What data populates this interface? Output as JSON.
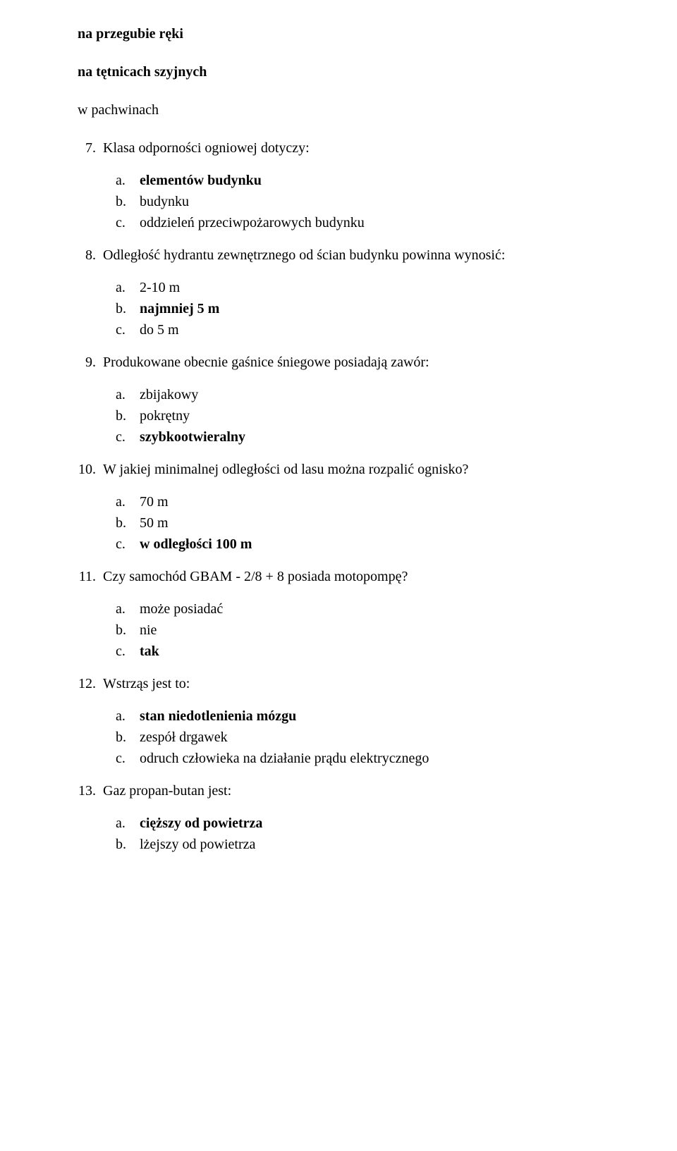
{
  "text_color": "#000000",
  "background_color": "#ffffff",
  "font_family": "Times New Roman",
  "font_size_pt": 15,
  "intro_lines": [
    "na przegubie ręki",
    "na tętnicach szyjnych",
    "w pachwinach"
  ],
  "questions": [
    {
      "num": "7.",
      "text": "Klasa odporności ogniowej dotyczy:",
      "options": [
        {
          "letter": "a.",
          "text": "elementów budynku",
          "bold": true
        },
        {
          "letter": "b.",
          "text": "budynku",
          "bold": false
        },
        {
          "letter": "c.",
          "text": "oddzieleń przeciwpożarowych budynku",
          "bold": false
        }
      ]
    },
    {
      "num": "8.",
      "text": "Odległość hydrantu zewnętrznego od ścian budynku powinna wynosić:",
      "options": [
        {
          "letter": "a.",
          "text": "2-10 m",
          "bold": false
        },
        {
          "letter": "b.",
          "text": "najmniej 5 m",
          "bold": true
        },
        {
          "letter": "c.",
          "text": "do 5 m",
          "bold": false
        }
      ]
    },
    {
      "num": "9.",
      "text": "Produkowane obecnie gaśnice śniegowe posiadają zawór:",
      "options": [
        {
          "letter": "a.",
          "text": "zbijakowy",
          "bold": false
        },
        {
          "letter": "b.",
          "text": "pokrętny",
          "bold": false
        },
        {
          "letter": "c.",
          "text": "szybkootwieralny",
          "bold": true
        }
      ]
    },
    {
      "num": "10.",
      "text": "W jakiej minimalnej odległości od lasu można rozpalić ognisko?",
      "options": [
        {
          "letter": "a.",
          "text": "70 m",
          "bold": false
        },
        {
          "letter": "b.",
          "text": "50 m",
          "bold": false
        },
        {
          "letter": "c.",
          "text": "w odległości 100 m",
          "bold": true
        }
      ]
    },
    {
      "num": "11.",
      "text": "Czy samochód GBAM - 2/8 + 8 posiada motopompę?",
      "options": [
        {
          "letter": "a.",
          "text": "może posiadać",
          "bold": false
        },
        {
          "letter": "b.",
          "text": "nie",
          "bold": false
        },
        {
          "letter": "c.",
          "text": "tak",
          "bold": true
        }
      ]
    },
    {
      "num": "12.",
      "text": "Wstrząs jest to:",
      "options": [
        {
          "letter": "a.",
          "text": "stan niedotlenienia mózgu",
          "bold": true
        },
        {
          "letter": "b.",
          "text": "zespół drgawek",
          "bold": false
        },
        {
          "letter": "c.",
          "text": "odruch człowieka na działanie prądu elektrycznego",
          "bold": false
        }
      ]
    },
    {
      "num": "13.",
      "text": "Gaz propan-butan jest:",
      "options": [
        {
          "letter": "a.",
          "text": "cięższy od powietrza",
          "bold": true
        },
        {
          "letter": "b.",
          "text": "lżejszy od powietrza",
          "bold": false
        }
      ]
    }
  ]
}
